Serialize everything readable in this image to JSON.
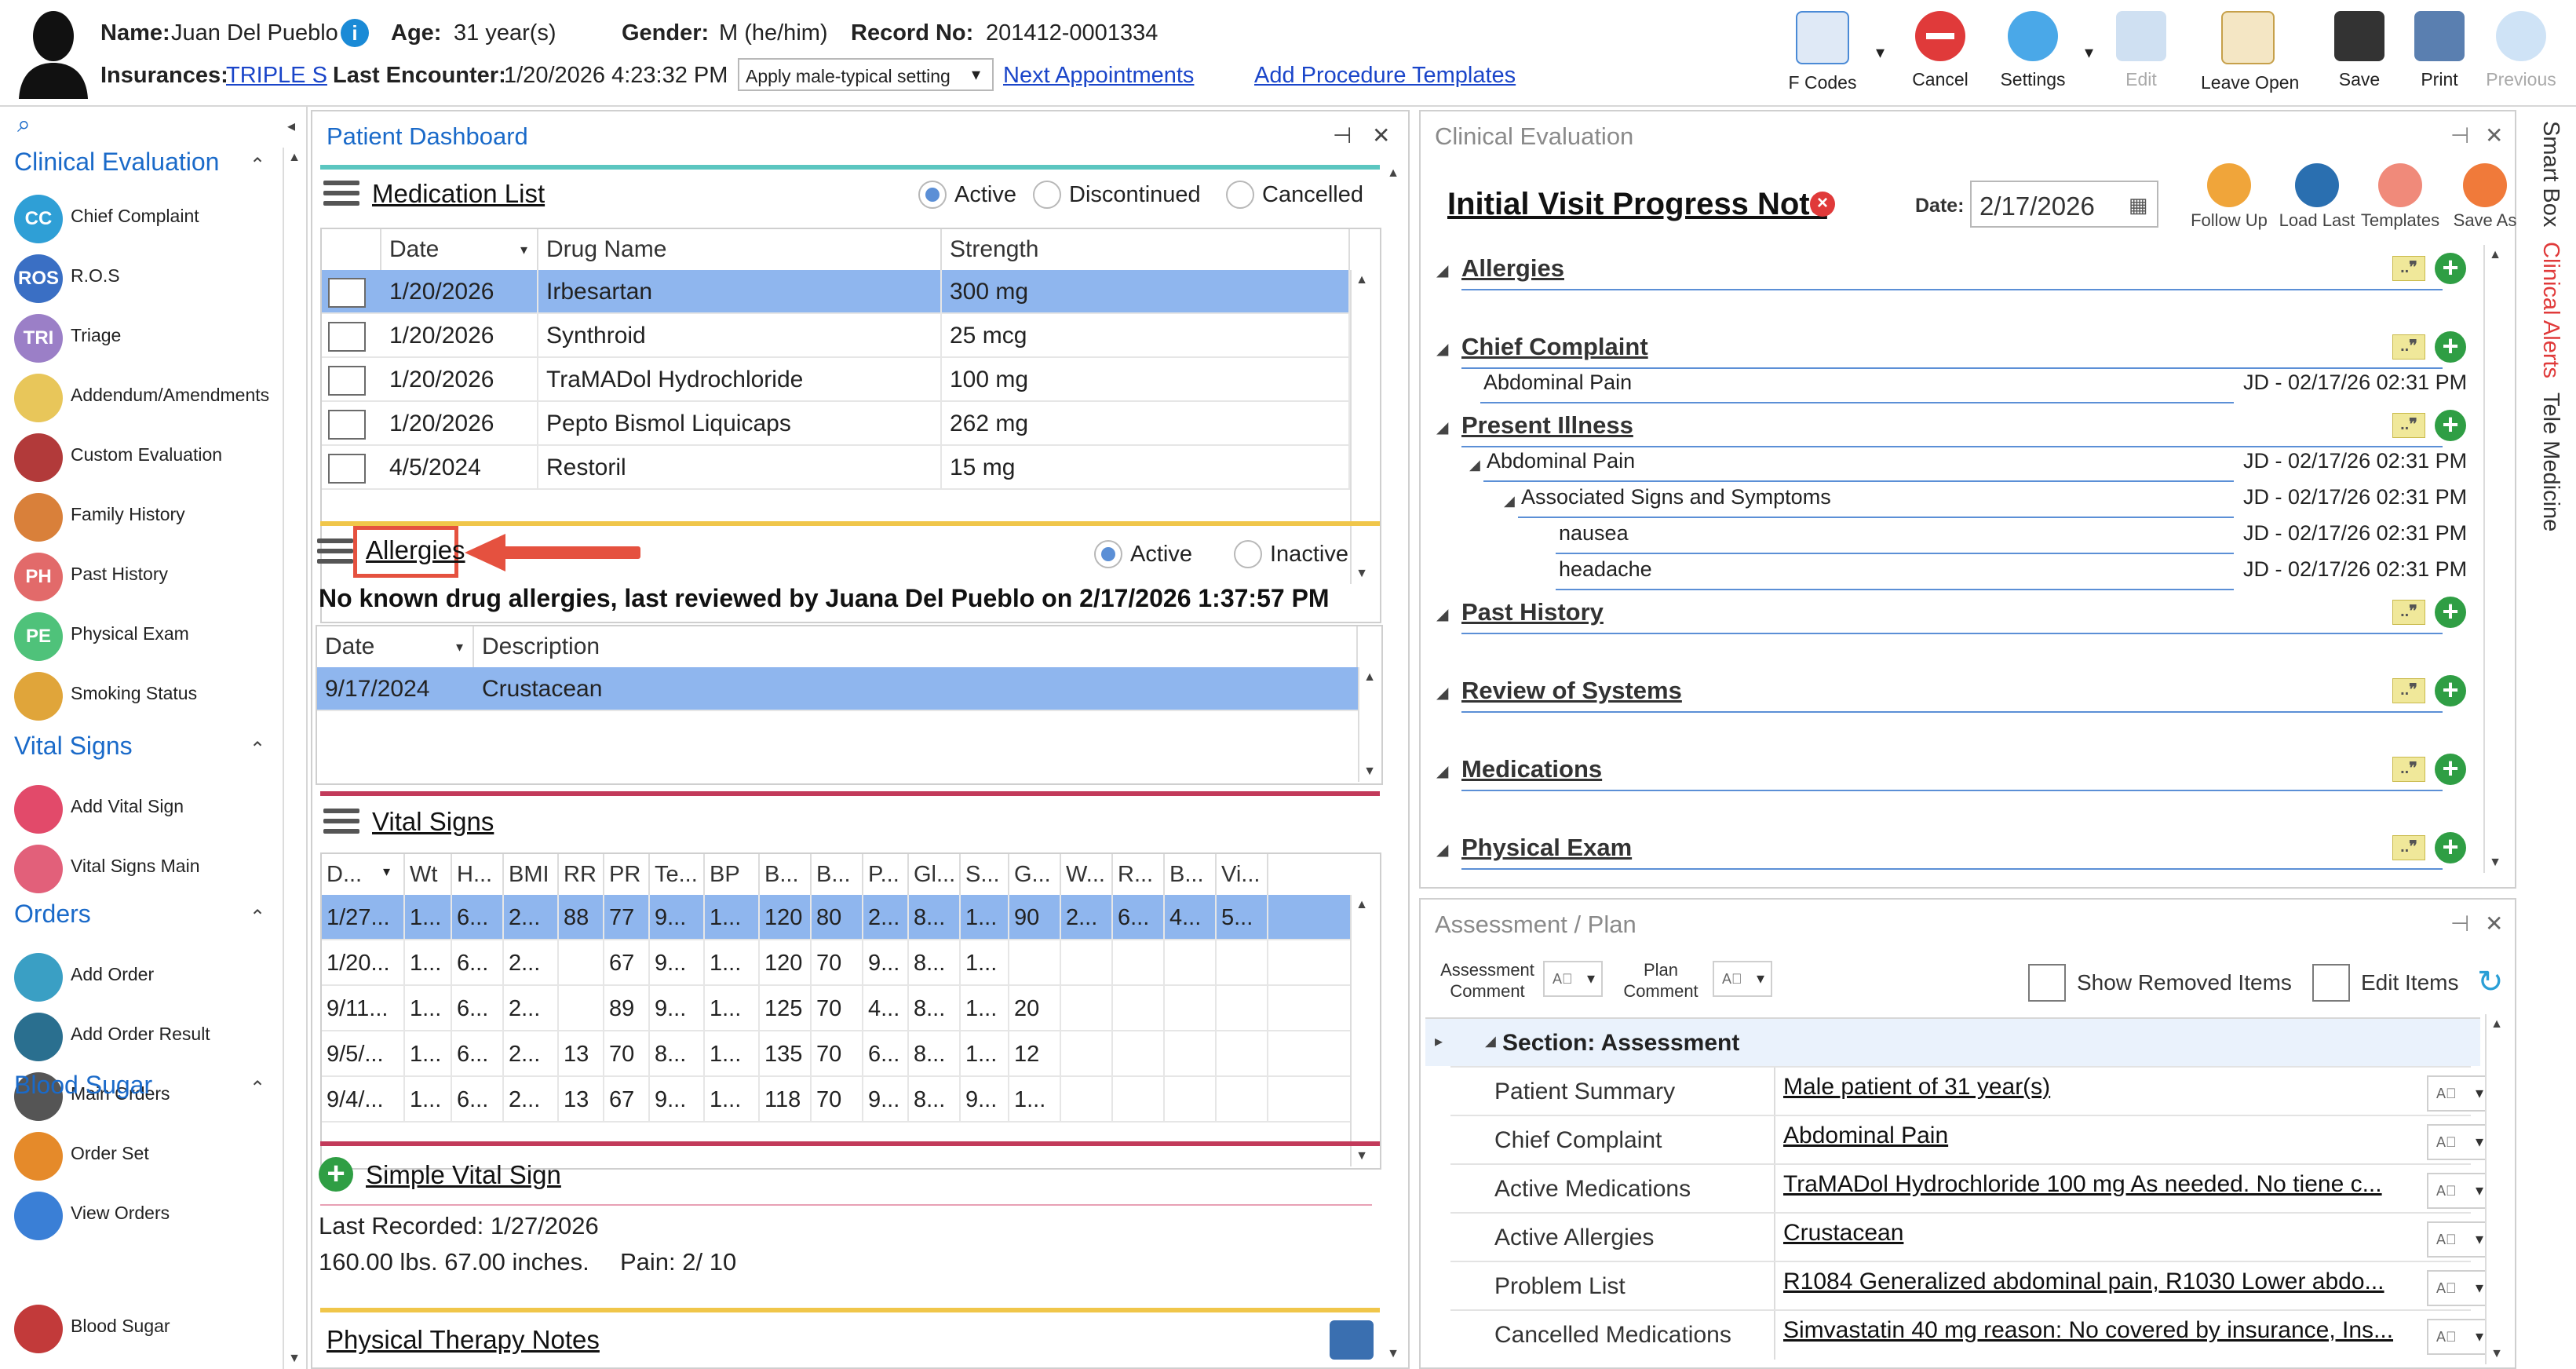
{
  "patient": {
    "name_label": "Name:",
    "name": "Juan Del Pueblo",
    "age_label": "Age:",
    "age": "31 year(s)",
    "gender_label": "Gender:",
    "gender": "M (he/him)",
    "record_label": "Record No:",
    "record": "201412-0001334",
    "insurances_label": "Insurances:",
    "insurance": "TRIPLE S",
    "last_encounter_label": "Last Encounter:",
    "last_encounter": "1/20/2026 4:23:32 PM",
    "setting_select": "Apply male-typical setting",
    "next_appointments": "Next Appointments",
    "add_procedure_templates": "Add Procedure Templates"
  },
  "toolbar": {
    "fcodes": "F Codes",
    "cancel": "Cancel",
    "settings": "Settings",
    "edit": "Edit",
    "leave_open": "Leave Open",
    "save": "Save",
    "print": "Print",
    "previous": "Previous"
  },
  "sidebar": {
    "groups": [
      {
        "title": "Clinical Evaluation",
        "items": [
          {
            "label": "Chief Complaint",
            "icon": "CC",
            "color": "#2f9fd6"
          },
          {
            "label": "R.O.S",
            "icon": "ROS",
            "color": "#3a6fc4"
          },
          {
            "label": "Triage",
            "icon": "TRI",
            "color": "#9b7fc7"
          },
          {
            "label": "Addendum/Amendments",
            "icon": "",
            "color": "#e8c65a"
          },
          {
            "label": "Custom Evaluation",
            "icon": "",
            "color": "#b23a3a"
          },
          {
            "label": "Family History",
            "icon": "",
            "color": "#d9803a"
          },
          {
            "label": "Past History",
            "icon": "PH",
            "color": "#e26a6a"
          },
          {
            "label": "Physical Exam",
            "icon": "PE",
            "color": "#4fc27a"
          },
          {
            "label": "Smoking Status",
            "icon": "",
            "color": "#e0a53a"
          }
        ]
      },
      {
        "title": "Vital Signs",
        "items": [
          {
            "label": "Add Vital Sign",
            "icon": "",
            "color": "#e24a6a"
          },
          {
            "label": "Vital Signs Main",
            "icon": "",
            "color": "#e2607a"
          }
        ]
      },
      {
        "title": "Orders",
        "items": [
          {
            "label": "Add Order",
            "icon": "",
            "color": "#3a9fc4"
          },
          {
            "label": "Add Order Result",
            "icon": "",
            "color": "#2a6f8f"
          },
          {
            "label": "Main Orders",
            "icon": "",
            "color": "#555555"
          },
          {
            "label": "Order Set",
            "icon": "",
            "color": "#e58a2a"
          },
          {
            "label": "View Orders",
            "icon": "",
            "color": "#3a7fd6"
          }
        ]
      },
      {
        "title": "Blood Sugar",
        "items": [
          {
            "label": "Blood Sugar",
            "icon": "",
            "color": "#c23a3a"
          }
        ]
      }
    ]
  },
  "dashboard": {
    "title": "Patient Dashboard",
    "medication_list": {
      "title": "Medication List",
      "filters": [
        "Active",
        "Discontinued",
        "Cancelled"
      ],
      "columns": [
        "Date",
        "Drug Name",
        "Strength"
      ],
      "rows": [
        {
          "date": "1/20/2026",
          "drug": "Irbesartan",
          "strength": "300 mg"
        },
        {
          "date": "1/20/2026",
          "drug": "Synthroid",
          "strength": "25 mcg"
        },
        {
          "date": "1/20/2026",
          "drug": "TraMADol Hydrochloride",
          "strength": "100 mg"
        },
        {
          "date": "1/20/2026",
          "drug": "Pepto Bismol Liquicaps",
          "strength": "262 mg"
        },
        {
          "date": "4/5/2024",
          "drug": "Restoril",
          "strength": "15 mg"
        }
      ]
    },
    "allergies": {
      "title": "Allergies",
      "filters": [
        "Active",
        "Inactive"
      ],
      "note": "No known drug allergies, last reviewed by Juana Del Pueblo on 2/17/2026 1:37:57 PM",
      "columns": [
        "Date",
        "Description"
      ],
      "rows": [
        {
          "date": "9/17/2024",
          "description": "Crustacean"
        }
      ]
    },
    "vital_signs": {
      "title": "Vital Signs",
      "columns": [
        "D...",
        "Wt",
        "H...",
        "BMI",
        "RR",
        "PR",
        "Te...",
        "BP",
        "B...",
        "B...",
        "P...",
        "Gl...",
        "S...",
        "G...",
        "W...",
        "R...",
        "B...",
        "Vi..."
      ],
      "rows": [
        [
          "1/27...",
          "1...",
          "6...",
          "2...",
          "88",
          "77",
          "9...",
          "1...",
          "120",
          "80",
          "2...",
          "8...",
          "1...",
          "90",
          "2...",
          "6...",
          "4...",
          "5..."
        ],
        [
          "1/20...",
          "1...",
          "6...",
          "2...",
          "",
          "67",
          "9...",
          "1...",
          "120",
          "70",
          "9...",
          "8...",
          "1...",
          "",
          "",
          "",
          "",
          ""
        ],
        [
          "9/11...",
          "1...",
          "6...",
          "2...",
          "",
          "89",
          "9...",
          "1...",
          "125",
          "70",
          "4...",
          "8...",
          "1...",
          "20",
          "",
          "",
          "",
          ""
        ],
        [
          "9/5/...",
          "1...",
          "6...",
          "2...",
          "13",
          "70",
          "8...",
          "1...",
          "135",
          "70",
          "6...",
          "8...",
          "1...",
          "12",
          "",
          "",
          "",
          ""
        ],
        [
          "9/4/...",
          "1...",
          "6...",
          "2...",
          "13",
          "67",
          "9...",
          "1...",
          "118",
          "70",
          "9...",
          "8...",
          "9...",
          "1...",
          "",
          "",
          "",
          ""
        ]
      ]
    },
    "simple_vital_sign": {
      "title": "Simple Vital Sign",
      "last_recorded": "Last Recorded: 1/27/2026",
      "measurements": "160.00 lbs. 67.00 inches.",
      "pain": "Pain: 2/ 10"
    },
    "physical_therapy": {
      "title": "Physical Therapy Notes"
    }
  },
  "clinical_eval": {
    "title": "Clinical Evaluation",
    "note_title": "Initial Visit Progress Note",
    "date_label": "Date:",
    "date": "2/17/2026",
    "actions": [
      "Follow Up",
      "Load Last",
      "Templates",
      "Save As"
    ],
    "sections": [
      "Allergies",
      "Chief Complaint",
      "Present Illness",
      "Past History",
      "Review of Systems",
      "Medications",
      "Physical Exam"
    ],
    "chief_complaint_item": "Abdominal Pain",
    "present_illness_items": [
      "Abdominal Pain",
      "Associated Signs and Symptoms",
      "nausea",
      "headache"
    ],
    "meta": "JD - 02/17/26 02:31 PM"
  },
  "assessment": {
    "title": "Assessment / Plan",
    "assessment_comment": "Assessment Comment",
    "plan_comment": "Plan Comment",
    "show_removed": "Show Removed Items",
    "edit_items": "Edit Items",
    "section_title": "Section: Assessment",
    "rows": [
      {
        "label": "Patient Summary",
        "value": "Male patient of 31 year(s)"
      },
      {
        "label": "Chief Complaint",
        "value": "Abdominal Pain"
      },
      {
        "label": "Active Medications",
        "value": "TraMADol Hydrochloride 100 mg As needed.  No tiene c..."
      },
      {
        "label": "Active Allergies",
        "value": "Crustacean"
      },
      {
        "label": "Problem List",
        "value": "R1084 Generalized abdominal pain, R1030 Lower abdo..."
      },
      {
        "label": "Cancelled Medications",
        "value": "Simvastatin 40 mg reason: No covered by insurance, Ins..."
      }
    ]
  },
  "right_tabs": [
    "Smart Box",
    "Clinical Alerts",
    "Tele Medicine"
  ],
  "colors": {
    "accent": "#1a6ac9",
    "selected_row": "#8fb6ee",
    "callout": "#e5513f",
    "alert_tab": "#e03a3a"
  }
}
